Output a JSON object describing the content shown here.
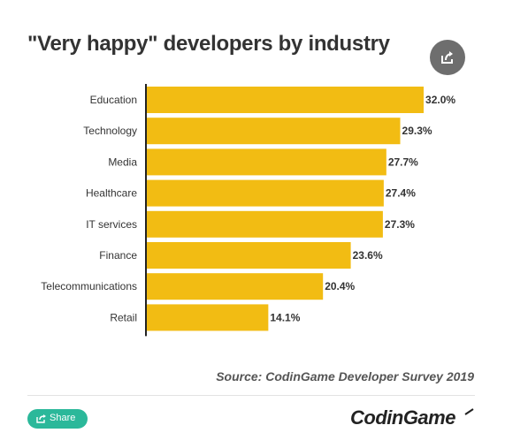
{
  "header": {
    "title": "\"Very happy\" developers by industry"
  },
  "icons": {
    "share_top": "share-icon",
    "share_pill": "share-icon"
  },
  "chart_data": {
    "type": "bar",
    "orientation": "horizontal",
    "title": "\"Very happy\" developers by industry",
    "categories": [
      "Education",
      "Technology",
      "Media",
      "Healthcare",
      "IT services",
      "Finance",
      "Telecommunications",
      "Retail"
    ],
    "values": [
      32.0,
      29.3,
      27.7,
      27.4,
      27.3,
      23.6,
      20.4,
      14.1
    ],
    "value_labels": [
      "32.0%",
      "29.3%",
      "27.7%",
      "27.4%",
      "27.3%",
      "23.6%",
      "20.4%",
      "14.1%"
    ],
    "xlim": [
      0,
      37.5
    ],
    "grid": false,
    "bar_color": "#f2bc13"
  },
  "footer": {
    "source": "Source: CodinGame Developer Survey 2019",
    "share_label": "Share",
    "logo_text": "CodinGame",
    "share_color": "#2bb89a"
  }
}
